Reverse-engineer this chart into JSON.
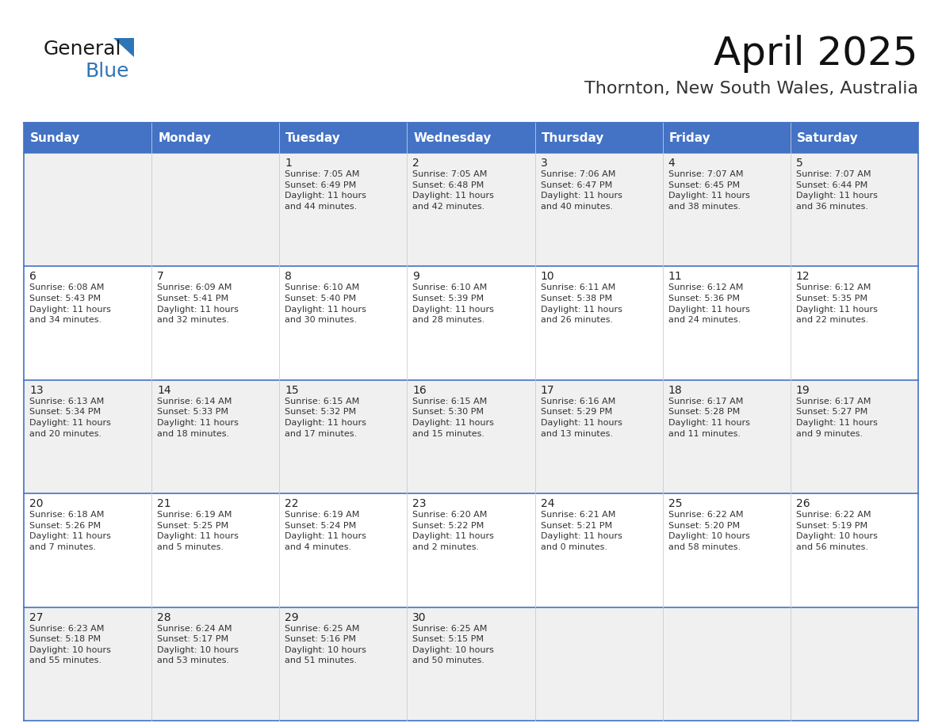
{
  "title": "April 2025",
  "subtitle": "Thornton, New South Wales, Australia",
  "header_bg": "#4472C4",
  "header_text_color": "#FFFFFF",
  "row_bg_even": "#F0F0F0",
  "row_bg_odd": "#FFFFFF",
  "border_color": "#4472C4",
  "row_divider_color": "#4472C4",
  "day_headers": [
    "Sunday",
    "Monday",
    "Tuesday",
    "Wednesday",
    "Thursday",
    "Friday",
    "Saturday"
  ],
  "weeks": [
    [
      {
        "day": "",
        "text": ""
      },
      {
        "day": "",
        "text": ""
      },
      {
        "day": "1",
        "text": "Sunrise: 7:05 AM\nSunset: 6:49 PM\nDaylight: 11 hours\nand 44 minutes."
      },
      {
        "day": "2",
        "text": "Sunrise: 7:05 AM\nSunset: 6:48 PM\nDaylight: 11 hours\nand 42 minutes."
      },
      {
        "day": "3",
        "text": "Sunrise: 7:06 AM\nSunset: 6:47 PM\nDaylight: 11 hours\nand 40 minutes."
      },
      {
        "day": "4",
        "text": "Sunrise: 7:07 AM\nSunset: 6:45 PM\nDaylight: 11 hours\nand 38 minutes."
      },
      {
        "day": "5",
        "text": "Sunrise: 7:07 AM\nSunset: 6:44 PM\nDaylight: 11 hours\nand 36 minutes."
      }
    ],
    [
      {
        "day": "6",
        "text": "Sunrise: 6:08 AM\nSunset: 5:43 PM\nDaylight: 11 hours\nand 34 minutes."
      },
      {
        "day": "7",
        "text": "Sunrise: 6:09 AM\nSunset: 5:41 PM\nDaylight: 11 hours\nand 32 minutes."
      },
      {
        "day": "8",
        "text": "Sunrise: 6:10 AM\nSunset: 5:40 PM\nDaylight: 11 hours\nand 30 minutes."
      },
      {
        "day": "9",
        "text": "Sunrise: 6:10 AM\nSunset: 5:39 PM\nDaylight: 11 hours\nand 28 minutes."
      },
      {
        "day": "10",
        "text": "Sunrise: 6:11 AM\nSunset: 5:38 PM\nDaylight: 11 hours\nand 26 minutes."
      },
      {
        "day": "11",
        "text": "Sunrise: 6:12 AM\nSunset: 5:36 PM\nDaylight: 11 hours\nand 24 minutes."
      },
      {
        "day": "12",
        "text": "Sunrise: 6:12 AM\nSunset: 5:35 PM\nDaylight: 11 hours\nand 22 minutes."
      }
    ],
    [
      {
        "day": "13",
        "text": "Sunrise: 6:13 AM\nSunset: 5:34 PM\nDaylight: 11 hours\nand 20 minutes."
      },
      {
        "day": "14",
        "text": "Sunrise: 6:14 AM\nSunset: 5:33 PM\nDaylight: 11 hours\nand 18 minutes."
      },
      {
        "day": "15",
        "text": "Sunrise: 6:15 AM\nSunset: 5:32 PM\nDaylight: 11 hours\nand 17 minutes."
      },
      {
        "day": "16",
        "text": "Sunrise: 6:15 AM\nSunset: 5:30 PM\nDaylight: 11 hours\nand 15 minutes."
      },
      {
        "day": "17",
        "text": "Sunrise: 6:16 AM\nSunset: 5:29 PM\nDaylight: 11 hours\nand 13 minutes."
      },
      {
        "day": "18",
        "text": "Sunrise: 6:17 AM\nSunset: 5:28 PM\nDaylight: 11 hours\nand 11 minutes."
      },
      {
        "day": "19",
        "text": "Sunrise: 6:17 AM\nSunset: 5:27 PM\nDaylight: 11 hours\nand 9 minutes."
      }
    ],
    [
      {
        "day": "20",
        "text": "Sunrise: 6:18 AM\nSunset: 5:26 PM\nDaylight: 11 hours\nand 7 minutes."
      },
      {
        "day": "21",
        "text": "Sunrise: 6:19 AM\nSunset: 5:25 PM\nDaylight: 11 hours\nand 5 minutes."
      },
      {
        "day": "22",
        "text": "Sunrise: 6:19 AM\nSunset: 5:24 PM\nDaylight: 11 hours\nand 4 minutes."
      },
      {
        "day": "23",
        "text": "Sunrise: 6:20 AM\nSunset: 5:22 PM\nDaylight: 11 hours\nand 2 minutes."
      },
      {
        "day": "24",
        "text": "Sunrise: 6:21 AM\nSunset: 5:21 PM\nDaylight: 11 hours\nand 0 minutes."
      },
      {
        "day": "25",
        "text": "Sunrise: 6:22 AM\nSunset: 5:20 PM\nDaylight: 10 hours\nand 58 minutes."
      },
      {
        "day": "26",
        "text": "Sunrise: 6:22 AM\nSunset: 5:19 PM\nDaylight: 10 hours\nand 56 minutes."
      }
    ],
    [
      {
        "day": "27",
        "text": "Sunrise: 6:23 AM\nSunset: 5:18 PM\nDaylight: 10 hours\nand 55 minutes."
      },
      {
        "day": "28",
        "text": "Sunrise: 6:24 AM\nSunset: 5:17 PM\nDaylight: 10 hours\nand 53 minutes."
      },
      {
        "day": "29",
        "text": "Sunrise: 6:25 AM\nSunset: 5:16 PM\nDaylight: 10 hours\nand 51 minutes."
      },
      {
        "day": "30",
        "text": "Sunrise: 6:25 AM\nSunset: 5:15 PM\nDaylight: 10 hours\nand 50 minutes."
      },
      {
        "day": "",
        "text": ""
      },
      {
        "day": "",
        "text": ""
      },
      {
        "day": "",
        "text": ""
      }
    ]
  ],
  "logo_text1": "General",
  "logo_text2": "Blue",
  "logo_triangle_color": "#2E75B6",
  "logo_text1_color": "#1a1a1a",
  "logo_text2_color": "#2E75B6",
  "title_fontsize": 36,
  "subtitle_fontsize": 16,
  "header_fontsize": 11,
  "day_num_fontsize": 10,
  "cell_text_fontsize": 8
}
